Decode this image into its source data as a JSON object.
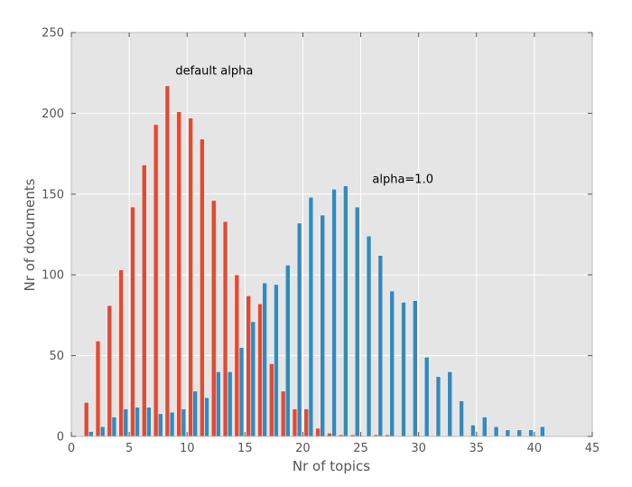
{
  "chart_data": {
    "type": "bar",
    "xlabel": "Nr of topics",
    "ylabel": "Nr of documents",
    "xlim": [
      0,
      45
    ],
    "ylim": [
      0,
      250
    ],
    "xticks": [
      "0",
      "5",
      "10",
      "15",
      "20",
      "25",
      "30",
      "35",
      "40",
      "45"
    ],
    "yticks": [
      "0",
      "50",
      "100",
      "150",
      "200",
      "250"
    ],
    "grid": true,
    "legend": "none",
    "background": "#e5e5e5",
    "series": [
      {
        "color": "#e24a33",
        "x": [
          1.3,
          2.3,
          3.3,
          4.3,
          5.3,
          6.3,
          7.3,
          8.3,
          9.3,
          10.3,
          11.3,
          12.3,
          13.3,
          14.3,
          15.3,
          16.3,
          17.3,
          18.3,
          19.3,
          20.3,
          21.3,
          22.3,
          23.3,
          24.3,
          26.3,
          27.3
        ],
        "values": [
          21,
          59,
          81,
          103,
          142,
          168,
          193,
          217,
          201,
          197,
          184,
          146,
          133,
          100,
          87,
          82,
          45,
          28,
          17,
          17,
          5,
          2,
          1,
          1,
          1,
          1
        ]
      },
      {
        "color": "#348abd",
        "x": [
          1.7,
          2.7,
          3.7,
          4.7,
          5.7,
          6.7,
          7.7,
          8.7,
          9.7,
          10.7,
          11.7,
          12.7,
          13.7,
          14.7,
          15.7,
          16.7,
          17.7,
          18.7,
          19.7,
          20.7,
          21.7,
          22.7,
          23.7,
          24.7,
          25.7,
          26.7,
          27.7,
          28.7,
          29.7,
          30.7,
          31.7,
          32.7,
          33.7,
          34.7,
          35.7,
          36.7,
          37.7,
          38.7,
          39.7,
          40.7
        ],
        "values": [
          3,
          6,
          12,
          17,
          18,
          18,
          14,
          15,
          17,
          28,
          24,
          40,
          40,
          55,
          71,
          95,
          94,
          106,
          132,
          148,
          137,
          153,
          155,
          142,
          124,
          112,
          90,
          83,
          84,
          49,
          37,
          40,
          22,
          7,
          12,
          6,
          4,
          4,
          4,
          6
        ]
      }
    ],
    "annotations": [
      {
        "text": "default alpha",
        "x": 9.0,
        "y": 224
      },
      {
        "text": "alpha=1.0",
        "x": 26.0,
        "y": 157
      }
    ]
  }
}
